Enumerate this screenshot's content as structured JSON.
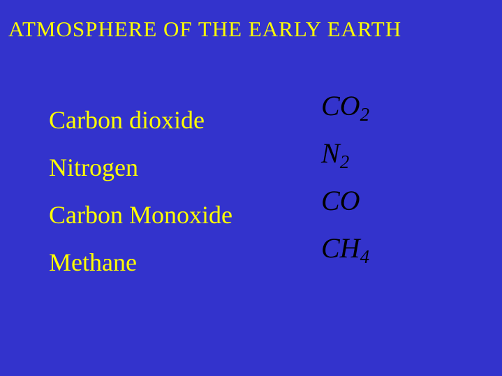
{
  "slide": {
    "title": "ATMOSPHERE OF THE EARLY EARTH",
    "background_color": "#3333cc",
    "title_color": "#ffff00",
    "name_color": "#ffff00",
    "formula_color": "#000000",
    "title_fontsize": 31,
    "name_fontsize": 36,
    "formula_fontsize": 40,
    "rows": [
      {
        "name": "Carbon dioxide",
        "formula_base": "CO",
        "formula_sub": "2"
      },
      {
        "name": "Nitrogen",
        "formula_base": "N",
        "formula_sub": "2"
      },
      {
        "name": "Carbon Monoxide",
        "formula_base": "CO",
        "formula_sub": ""
      },
      {
        "name": "Methane",
        "formula_base": "CH",
        "formula_sub": "4"
      }
    ]
  }
}
